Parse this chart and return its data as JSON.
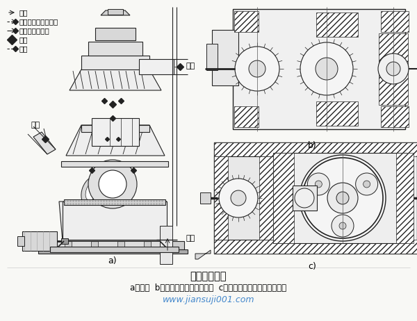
{
  "title": "碾磨传动装置",
  "subtitle": "a）碾磨  b）圆锥、圆柱齿轮减速器  c）圆锥齿轮、行星齿轮减速器",
  "watermark": "www.jiansuji001.com",
  "watermark_color": "#4488cc",
  "bg_color": "#f5f5f0",
  "label_a": "a)",
  "label_b": "b)",
  "label_c": "c)",
  "figsize": [
    6.0,
    4.62
  ],
  "dpi": 100
}
